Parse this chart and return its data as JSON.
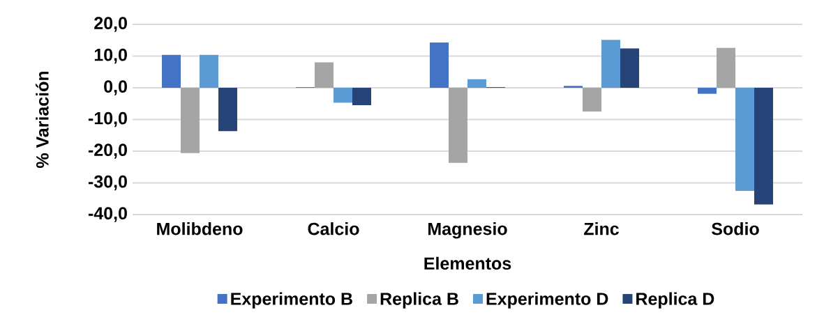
{
  "chart_data": {
    "type": "bar",
    "xlabel": "Elementos",
    "ylabel": "% Variación",
    "categories": [
      "Molibdeno",
      "Calcio",
      "Magnesio",
      "Zinc",
      "Sodio"
    ],
    "series": [
      {
        "name": "Experimento B",
        "color": "#4472c4",
        "values": [
          10.4,
          0.2,
          14.3,
          0.6,
          -1.9
        ]
      },
      {
        "name": "Replica B",
        "color": "#a5a5a5",
        "values": [
          -20.6,
          8.0,
          -23.7,
          -7.5,
          12.6
        ]
      },
      {
        "name": "Experimento D",
        "color": "#5b9bd5",
        "values": [
          10.4,
          -4.7,
          2.7,
          15.1,
          -32.5
        ]
      },
      {
        "name": "Replica D",
        "color": "#264478",
        "values": [
          -13.7,
          -5.5,
          0.2,
          12.4,
          -36.8
        ]
      }
    ],
    "ylim": [
      -40,
      20
    ],
    "yticks": [
      {
        "value": -40,
        "label": "-40,0"
      },
      {
        "value": -30,
        "label": "-30,0"
      },
      {
        "value": -20,
        "label": "-20,0"
      },
      {
        "value": -10,
        "label": "-10,0"
      },
      {
        "value": 0,
        "label": "0,0"
      },
      {
        "value": 10,
        "label": "10,0"
      },
      {
        "value": 20,
        "label": "20,0"
      }
    ],
    "grid": "y",
    "legend": "bottom"
  }
}
